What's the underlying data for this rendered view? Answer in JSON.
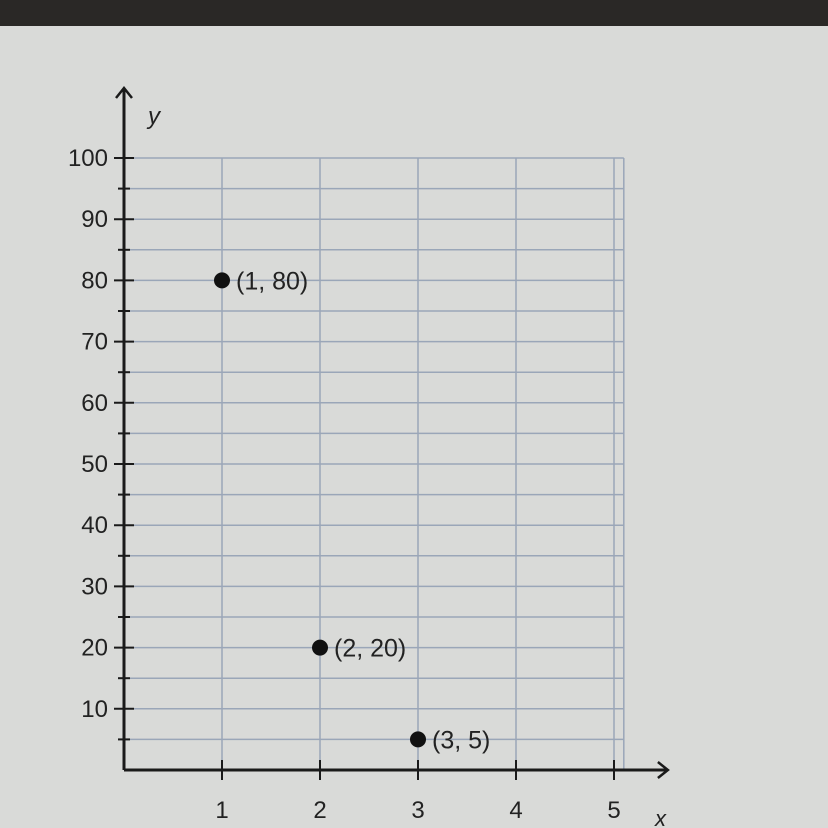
{
  "chart_data": {
    "type": "scatter",
    "xlabel": "x",
    "ylabel": "y",
    "xlim": [
      0,
      5
    ],
    "ylim": [
      0,
      100
    ],
    "x_ticks": [
      "1",
      "2",
      "3",
      "4",
      "5"
    ],
    "y_ticks": [
      "10",
      "20",
      "30",
      "40",
      "50",
      "60",
      "70",
      "80",
      "90",
      "100"
    ],
    "grid": true,
    "points": [
      {
        "x": 1,
        "y": 80,
        "label": "(1, 80)"
      },
      {
        "x": 2,
        "y": 20,
        "label": "(2, 20)"
      },
      {
        "x": 3,
        "y": 5,
        "label": "(3, 5)"
      }
    ],
    "colors": {
      "grid": "#9aa6b8",
      "axis": "#1a1a1a",
      "point": "#111111"
    }
  }
}
